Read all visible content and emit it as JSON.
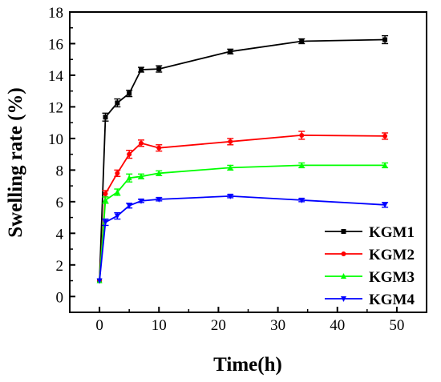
{
  "chart_data": {
    "type": "line",
    "title": "",
    "xlabel": "Time(h)",
    "ylabel": "Swelling rate (%)",
    "xlim": [
      -5,
      55
    ],
    "ylim": [
      -1,
      18
    ],
    "x_ticks": [
      0,
      10,
      20,
      30,
      40,
      50
    ],
    "y_ticks": [
      0,
      2,
      4,
      6,
      8,
      10,
      12,
      14,
      16,
      18
    ],
    "grid": false,
    "legend_position": "bottom-right",
    "x": [
      0,
      1,
      3,
      5,
      7,
      10,
      22,
      34,
      48
    ],
    "series": [
      {
        "name": "KGM1",
        "color": "#000000",
        "marker": "square",
        "values": [
          1.0,
          11.35,
          12.25,
          12.85,
          14.35,
          14.4,
          15.5,
          16.15,
          16.25
        ],
        "errors": [
          0,
          0.25,
          0.25,
          0.2,
          0.15,
          0.2,
          0.15,
          0.15,
          0.25
        ]
      },
      {
        "name": "KGM2",
        "color": "#ff0000",
        "marker": "circle",
        "values": [
          1.0,
          6.5,
          7.8,
          9.0,
          9.7,
          9.4,
          9.8,
          10.2,
          10.15
        ],
        "errors": [
          0,
          0.2,
          0.2,
          0.25,
          0.2,
          0.2,
          0.2,
          0.25,
          0.2
        ]
      },
      {
        "name": "KGM3",
        "color": "#00ff00",
        "marker": "triangle-up",
        "values": [
          1.0,
          6.1,
          6.6,
          7.5,
          7.6,
          7.8,
          8.15,
          8.3,
          8.3
        ],
        "errors": [
          0,
          0.2,
          0.2,
          0.25,
          0.15,
          0.15,
          0.15,
          0.15,
          0.15
        ]
      },
      {
        "name": "KGM4",
        "color": "#0000ff",
        "marker": "triangle-down",
        "values": [
          1.0,
          4.7,
          5.1,
          5.75,
          6.05,
          6.15,
          6.35,
          6.1,
          5.8
        ],
        "errors": [
          0,
          0.2,
          0.2,
          0.15,
          0.1,
          0.1,
          0.1,
          0.1,
          0.15
        ]
      }
    ]
  }
}
